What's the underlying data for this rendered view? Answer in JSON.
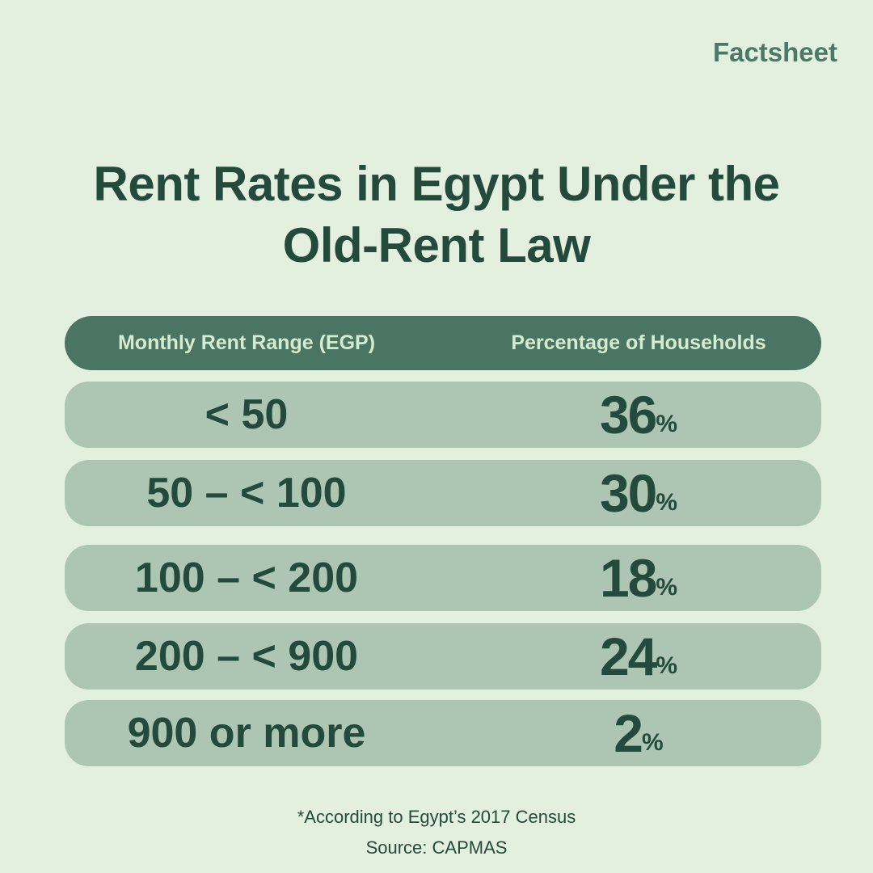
{
  "header": {
    "tag": "Factsheet",
    "title": "Rent Rates in Egypt Under the Old-Rent Law"
  },
  "table": {
    "headers": [
      "Monthly Rent Range (EGP)",
      "Percentage of Households"
    ],
    "rows": [
      {
        "range": "< 50",
        "value": 36,
        "unit": "%"
      },
      {
        "range": "50 – < 100",
        "value": 30,
        "unit": "%"
      },
      {
        "range": "100 – < 200",
        "value": 18,
        "unit": "%"
      },
      {
        "range": "200 – < 900",
        "value": 24,
        "unit": "%"
      },
      {
        "range": "900 or more",
        "value": 2,
        "unit": "%"
      }
    ]
  },
  "footer": {
    "note": "*According to Egypt’s 2017 Census",
    "source": "Source: CAPMAS"
  }
}
